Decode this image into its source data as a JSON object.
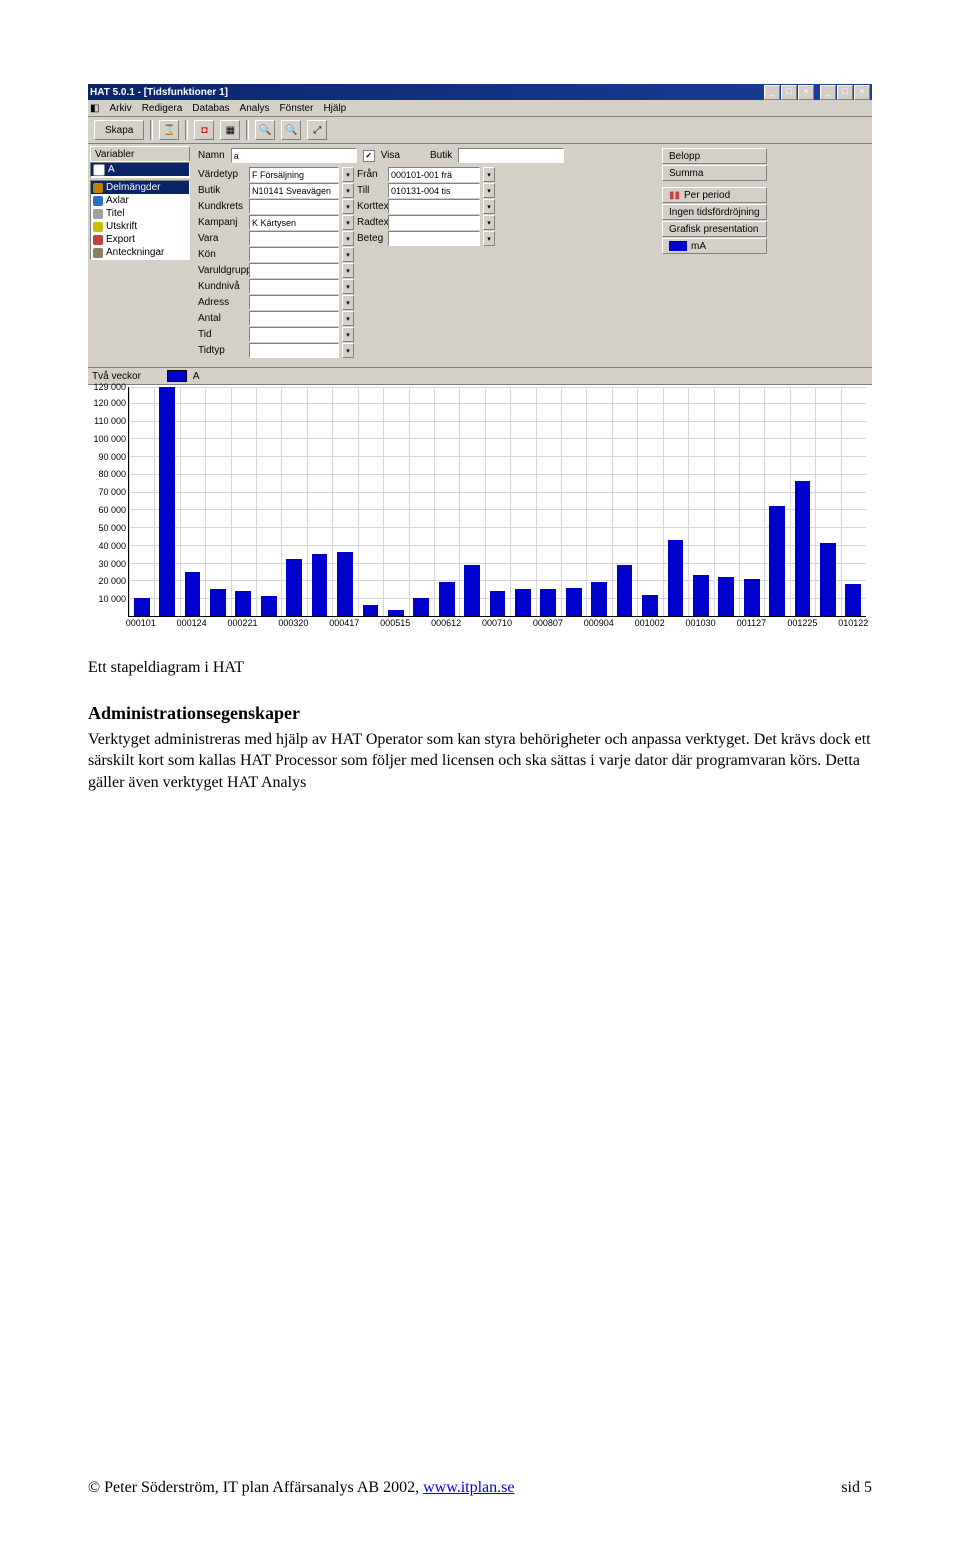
{
  "app": {
    "title": "HAT 5.0.1 - [Tidsfunktioner 1]",
    "menu": [
      "Arkiv",
      "Redigera",
      "Databas",
      "Analys",
      "Fönster",
      "Hjälp"
    ],
    "toolbar": {
      "skapa": "Skapa"
    },
    "side": {
      "tab": "Variabler",
      "header": "A",
      "items": [
        {
          "label": "Delmängder",
          "color": "#c08000",
          "selected": true
        },
        {
          "label": "Axlar",
          "color": "#2a6fc4",
          "selected": false
        },
        {
          "label": "Titel",
          "color": "#a0a0a0",
          "selected": false
        },
        {
          "label": "Utskrift",
          "color": "#c8c000",
          "selected": false
        },
        {
          "label": "Export",
          "color": "#c04040",
          "selected": false
        },
        {
          "label": "Anteckningar",
          "color": "#888060",
          "selected": false
        }
      ]
    },
    "filters": {
      "name_label": "Namn",
      "name_value": "a",
      "visa_label": "Visa",
      "visa_checked": true,
      "butik_label": "Butik",
      "butik_value": "",
      "rows": [
        {
          "l": "Värdetyp",
          "v": "F Försäljning",
          "l2": "Från",
          "v2": "000101-001 frä",
          "btn": "Belopp"
        },
        {
          "l": "Butik",
          "v": "N10141 Sveavägen",
          "l2": "Till",
          "v2": "010131-004 tis",
          "btn": "Summa"
        },
        {
          "l": "Kundkrets",
          "v": "",
          "l2": "Korttext",
          "v2": "",
          "btn": ""
        },
        {
          "l": "Kampanj",
          "v": "K Kärtysen",
          "l2": "Radtext",
          "v2": "",
          "btn": ""
        },
        {
          "l": "Vara",
          "v": "",
          "l2": "Beteg",
          "v2": "",
          "btn": ""
        },
        {
          "l": "Kön",
          "v": ""
        },
        {
          "l": "Varuldgrupp",
          "v": ""
        },
        {
          "l": "Kundnivå",
          "v": ""
        },
        {
          "l": "Adress",
          "v": ""
        },
        {
          "l": "Antal",
          "v": ""
        },
        {
          "l": "Tid",
          "v": ""
        },
        {
          "l": "Tidtyp",
          "v": ""
        }
      ],
      "right_buttons": [
        {
          "label": "Per period",
          "icon_color": "#d04040"
        },
        {
          "label": "Ingen tidsfördröjning"
        },
        {
          "label": "Grafisk presentation"
        }
      ],
      "legend_small": {
        "label": "mA",
        "color": "#0000cc"
      }
    }
  },
  "chart": {
    "type": "bar",
    "legend": {
      "series_label": "A",
      "series_color": "#0000cc",
      "caption": "Två veckor"
    },
    "ylim": [
      0,
      129000
    ],
    "yticks": [
      10000,
      20000,
      30000,
      40000,
      50000,
      60000,
      70000,
      80000,
      90000,
      100000,
      110000,
      120000,
      129000
    ],
    "ytick_labels": [
      "10 000",
      "20 000",
      "30 000",
      "40 000",
      "50 000",
      "60 000",
      "70 000",
      "80 000",
      "90 000",
      "100 000",
      "110 000",
      "120 000",
      "129 000"
    ],
    "grid_color": "#d6d6d6",
    "background_color": "#ffffff",
    "bar_color": "#0000cc",
    "bar_width": 0.62,
    "xticks_every": 2,
    "categories": [
      "000101",
      "000124",
      "000221",
      "000320",
      "000417",
      "000515",
      "000612",
      "000710",
      "000807",
      "000904",
      "001002",
      "001030",
      "001127",
      "001225",
      "010122"
    ],
    "values": [
      10000,
      129000,
      25000,
      15000,
      14000,
      11000,
      32000,
      35000,
      36000,
      6000,
      3500,
      10000,
      19000,
      29000,
      14000,
      15000,
      15000,
      16000,
      19000,
      29000,
      12000,
      43000,
      23000,
      22000,
      21000,
      62000,
      76000,
      41000,
      18000
    ]
  },
  "doc": {
    "caption": "Ett stapeldiagram i HAT",
    "heading": "Administrationsegenskaper",
    "p1": "Verktyget administreras med hjälp av HAT Operator som kan styra behörigheter och anpassa verktyget. Det krävs dock ett särskilt kort som kallas HAT Processor som följer med licensen och ska sättas i varje dator där programvaran körs. Detta gäller även verktyget HAT Analys",
    "footer_left": "© Peter Söderström, IT plan Affärsanalys AB 2002, ",
    "footer_link_text": "www.itplan.se",
    "footer_link_href": "http://www.itplan.se",
    "footer_right": "sid 5"
  }
}
